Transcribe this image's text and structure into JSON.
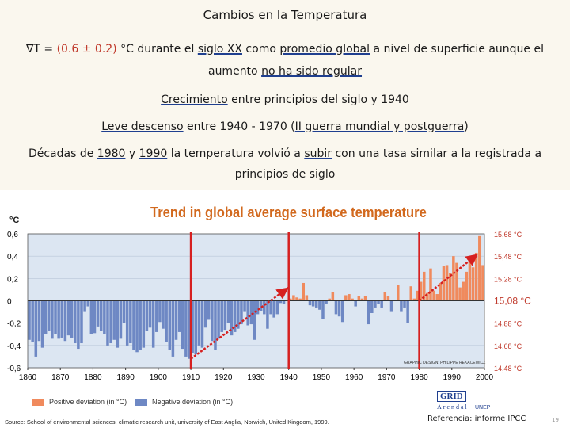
{
  "slide": {
    "title": "Cambios en la Temperatura",
    "line1_prefix": "∇T = ",
    "line1_value": "(0.6 ± 0.2)",
    "line1_a": " °C durante el ",
    "line1_u1": "siglo XX",
    "line1_b": " como ",
    "line1_u2": "promedio global",
    "line1_c": " a nivel de superficie aunque el",
    "line2_a": "aumento ",
    "line2_u": "no ha sido regular",
    "line3_u": "Crecimiento",
    "line3_rest": " entre principios del siglo y 1940",
    "line4_u1": "Leve descenso",
    "line4_mid": " entre 1940 - 1970 (",
    "line4_u2": "II guerra mundial y postguerra",
    "line4_end": ")",
    "line5_a": "Décadas de ",
    "line5_u1": "1980",
    "line5_b": " y ",
    "line5_u2": "1990",
    "line5_c": " la temperatura volvió a ",
    "line5_u3": "subir",
    "line5_d": " con una tasa similar a la registrada a",
    "line6": "principios de siglo",
    "reference": "Referencia: informe IPCC",
    "page_number": "19"
  },
  "figure": {
    "legend_positive": "Positive deviation (in °C)",
    "legend_negative": "Negative deviation (in °C)",
    "source": "Source: School of environmental sciences, climatic research unit, university of East Anglia, Norwich, United Kingdom, 1999.",
    "credit": "GRAPHIC DESIGN: PHILIPPE REKACEWICZ",
    "logo_grid": "GRID",
    "logo_arendal": "Arendal",
    "logo_unep": "UNEP"
  },
  "colors": {
    "positive": "#f08a5d",
    "negative": "#6e88c4",
    "annotation_red": "#d62020",
    "title_orange": "#d2691e",
    "plot_bg": "#dce6f2"
  },
  "chart_data": {
    "type": "bar",
    "title": "Trend in global average surface temperature",
    "ylabel": "°C",
    "xlabel": "",
    "ylim": [
      -0.6,
      0.6
    ],
    "xlim": [
      1860,
      2000
    ],
    "yticks": [
      "0,6",
      "0,4",
      "0,2",
      "0",
      "-0,2",
      "-0,4",
      "-0,6"
    ],
    "xticks": [
      "1860",
      "1870",
      "1880",
      "1890",
      "1900",
      "1910",
      "1920",
      "1930",
      "1940",
      "1950",
      "1960",
      "1970",
      "1980",
      "1990",
      "2000"
    ],
    "right_axis_labels": [
      "15,68 °C",
      "15,48 °C",
      "15,28 °C",
      "15,08 °C",
      "14,88 °C",
      "14,68 °C",
      "14,48 °C"
    ],
    "baseline_label": "15,08 °C",
    "annotations": {
      "vertical_lines_years": [
        1910,
        1940,
        1980
      ],
      "trend_arrows": [
        [
          1910,
          -0.52,
          1940,
          0.12
        ],
        [
          1980,
          0.0,
          1998,
          0.42
        ]
      ]
    },
    "years": [
      1860,
      1861,
      1862,
      1863,
      1864,
      1865,
      1866,
      1867,
      1868,
      1869,
      1870,
      1871,
      1872,
      1873,
      1874,
      1875,
      1876,
      1877,
      1878,
      1879,
      1880,
      1881,
      1882,
      1883,
      1884,
      1885,
      1886,
      1887,
      1888,
      1889,
      1890,
      1891,
      1892,
      1893,
      1894,
      1895,
      1896,
      1897,
      1898,
      1899,
      1900,
      1901,
      1902,
      1903,
      1904,
      1905,
      1906,
      1907,
      1908,
      1909,
      1910,
      1911,
      1912,
      1913,
      1914,
      1915,
      1916,
      1917,
      1918,
      1919,
      1920,
      1921,
      1922,
      1923,
      1924,
      1925,
      1926,
      1927,
      1928,
      1929,
      1930,
      1931,
      1932,
      1933,
      1934,
      1935,
      1936,
      1937,
      1938,
      1939,
      1940,
      1941,
      1942,
      1943,
      1944,
      1945,
      1946,
      1947,
      1948,
      1949,
      1950,
      1951,
      1952,
      1953,
      1954,
      1955,
      1956,
      1957,
      1958,
      1959,
      1960,
      1961,
      1962,
      1963,
      1964,
      1965,
      1966,
      1967,
      1968,
      1969,
      1970,
      1971,
      1972,
      1973,
      1974,
      1975,
      1976,
      1977,
      1978,
      1979,
      1980,
      1981,
      1982,
      1983,
      1984,
      1985,
      1986,
      1987,
      1988,
      1989,
      1990,
      1991,
      1992,
      1993,
      1994,
      1995,
      1996,
      1997,
      1998,
      1999
    ],
    "values": [
      -0.35,
      -0.37,
      -0.5,
      -0.36,
      -0.42,
      -0.3,
      -0.27,
      -0.34,
      -0.3,
      -0.34,
      -0.33,
      -0.36,
      -0.31,
      -0.33,
      -0.38,
      -0.43,
      -0.38,
      -0.1,
      -0.05,
      -0.3,
      -0.29,
      -0.23,
      -0.27,
      -0.3,
      -0.4,
      -0.38,
      -0.35,
      -0.42,
      -0.34,
      -0.2,
      -0.4,
      -0.38,
      -0.44,
      -0.46,
      -0.44,
      -0.42,
      -0.27,
      -0.24,
      -0.42,
      -0.28,
      -0.19,
      -0.25,
      -0.37,
      -0.44,
      -0.5,
      -0.35,
      -0.28,
      -0.43,
      -0.5,
      -0.52,
      -0.47,
      -0.48,
      -0.4,
      -0.42,
      -0.24,
      -0.17,
      -0.36,
      -0.44,
      -0.34,
      -0.28,
      -0.26,
      -0.2,
      -0.31,
      -0.28,
      -0.25,
      -0.21,
      -0.1,
      -0.22,
      -0.21,
      -0.35,
      -0.12,
      -0.09,
      -0.12,
      -0.25,
      -0.12,
      -0.15,
      -0.12,
      -0.02,
      -0.03,
      0.0,
      0.02,
      0.05,
      0.03,
      0.02,
      0.16,
      0.05,
      -0.04,
      -0.05,
      -0.06,
      -0.08,
      -0.16,
      -0.03,
      0.02,
      0.08,
      -0.12,
      -0.14,
      -0.19,
      0.05,
      0.06,
      0.02,
      -0.05,
      0.04,
      0.02,
      0.04,
      -0.21,
      -0.11,
      -0.06,
      -0.03,
      -0.06,
      0.08,
      0.04,
      -0.1,
      0.0,
      0.14,
      -0.1,
      -0.06,
      -0.2,
      0.13,
      0.02,
      0.09,
      0.17,
      0.26,
      0.07,
      0.29,
      0.09,
      0.06,
      0.16,
      0.31,
      0.32,
      0.25,
      0.4,
      0.34,
      0.12,
      0.17,
      0.26,
      0.4,
      0.3,
      0.43,
      0.58,
      0.32
    ]
  }
}
